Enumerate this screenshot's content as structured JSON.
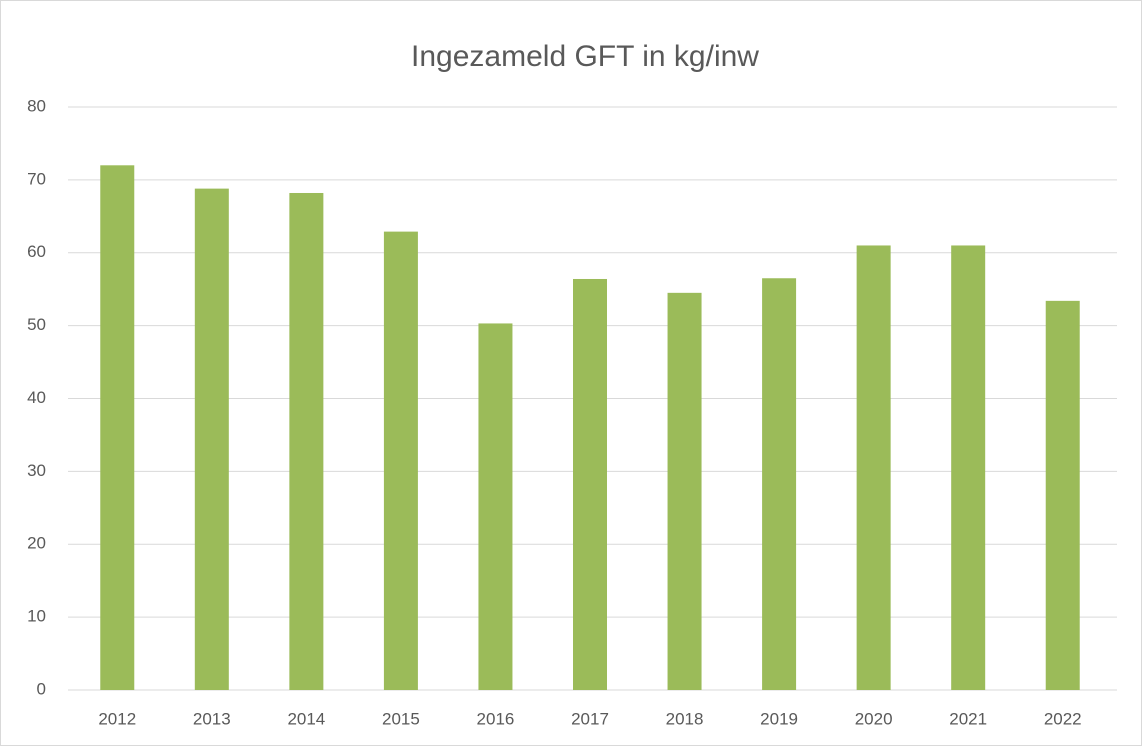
{
  "chart_data": {
    "type": "bar",
    "title": "Ingezameld GFT in kg/inw",
    "categories": [
      "2012",
      "2013",
      "2014",
      "2015",
      "2016",
      "2017",
      "2018",
      "2019",
      "2020",
      "2021",
      "2022"
    ],
    "values": [
      72,
      68.8,
      68.2,
      62.9,
      50.3,
      56.4,
      54.5,
      56.5,
      61,
      61,
      53.4
    ],
    "color": "#9bbb59",
    "ylim": [
      0,
      80
    ],
    "yticks": [
      0,
      10,
      20,
      30,
      40,
      50,
      60,
      70,
      80
    ],
    "grid": true
  }
}
